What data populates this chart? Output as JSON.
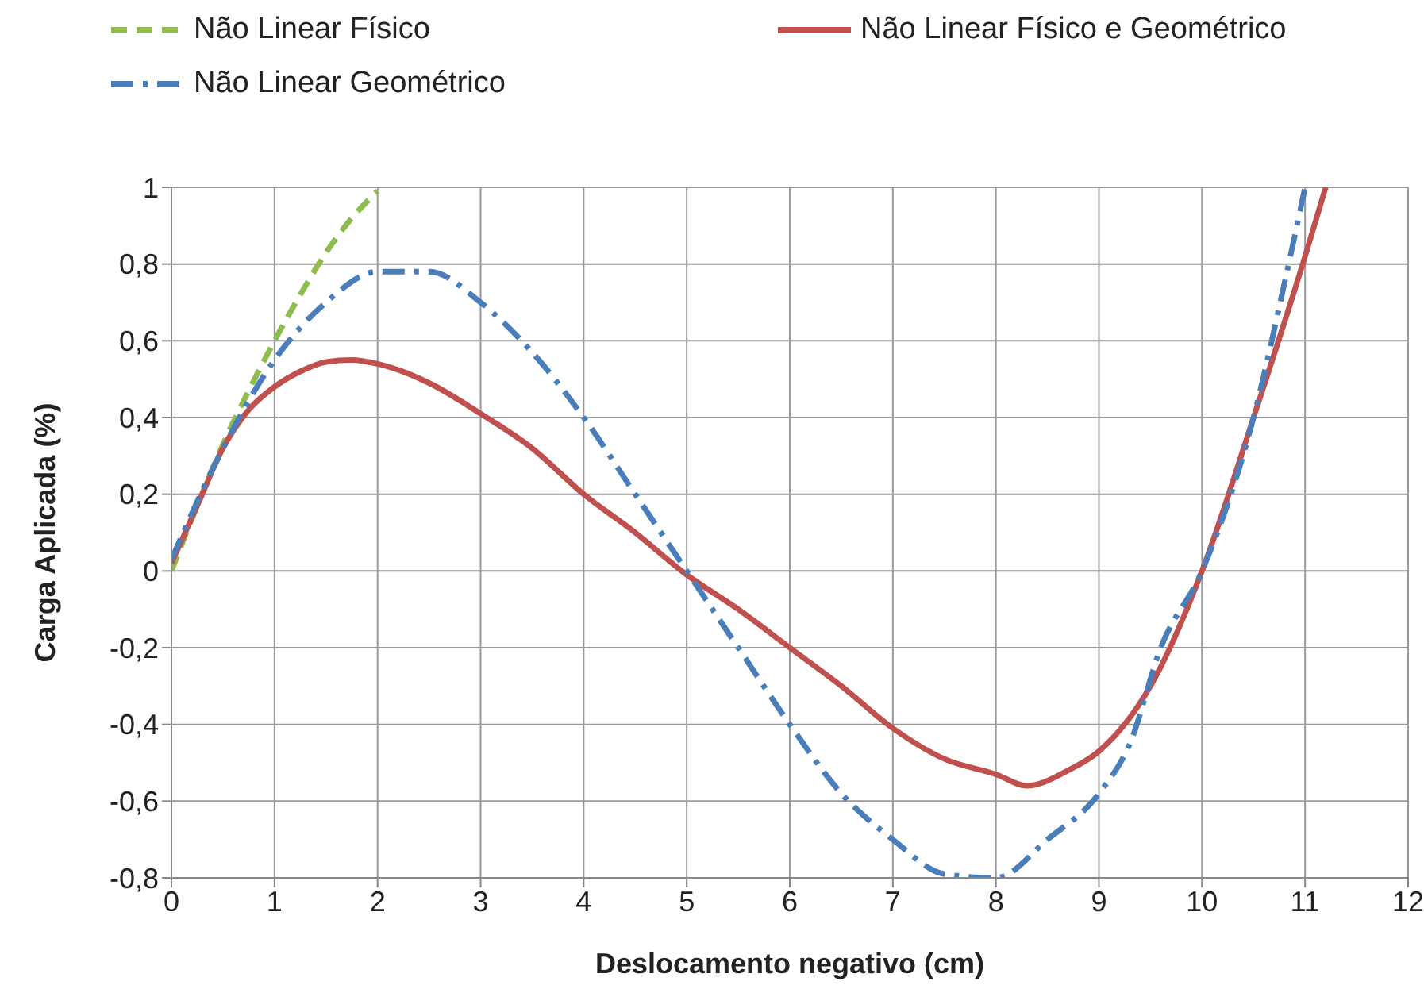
{
  "chart_data": {
    "type": "line",
    "xlabel": "Deslocamento negativo (cm)",
    "ylabel": "Carga Aplicada (%)",
    "xlim": [
      0,
      12
    ],
    "xticks": [
      0,
      1,
      2,
      3,
      4,
      5,
      6,
      7,
      8,
      9,
      10,
      11,
      12
    ],
    "ylim": [
      -0.8,
      1
    ],
    "yticks": [
      {
        "value": -0.8,
        "label": "-0,8"
      },
      {
        "value": -0.6,
        "label": "-0,6"
      },
      {
        "value": -0.4,
        "label": "-0,4"
      },
      {
        "value": -0.2,
        "label": "-0,2"
      },
      0,
      {
        "value": 0.2,
        "label": "0,2"
      },
      {
        "value": 0.4,
        "label": "0,4"
      },
      {
        "value": 0.6,
        "label": "0,6"
      },
      {
        "value": 0.8,
        "label": "0,8"
      },
      1
    ],
    "grid": true,
    "legend": "top",
    "marker": "none",
    "series": [
      {
        "name": "Não Linear Físico",
        "color": "#8fbc4f",
        "line_style": "dashed",
        "x": [
          0,
          0.25,
          0.5,
          0.75,
          1,
          1.25,
          1.5,
          1.75,
          2
        ],
        "values": [
          0,
          0.17,
          0.33,
          0.47,
          0.6,
          0.72,
          0.83,
          0.92,
          0.99
        ]
      },
      {
        "name": "Não Linear Físico e Geométrico",
        "color": "#c0504d",
        "line_style": "solid",
        "x": [
          0,
          0.25,
          0.5,
          0.75,
          1,
          1.25,
          1.5,
          1.75,
          2,
          2.5,
          3,
          3.5,
          4,
          4.5,
          5,
          5.5,
          6,
          6.5,
          7,
          7.5,
          8,
          8.3,
          8.7,
          9,
          9.5,
          10,
          10.5,
          11,
          11.2
        ],
        "values": [
          0.02,
          0.17,
          0.32,
          0.42,
          0.48,
          0.52,
          0.545,
          0.55,
          0.54,
          0.49,
          0.41,
          0.32,
          0.2,
          0.1,
          -0.01,
          -0.1,
          -0.2,
          -0.3,
          -0.41,
          -0.49,
          -0.53,
          -0.56,
          -0.52,
          -0.47,
          -0.3,
          0,
          0.4,
          0.82,
          1
        ]
      },
      {
        "name": "Não Linear Geométrico",
        "color": "#4a7ebb",
        "line_style": "dashdot",
        "x": [
          0,
          0.5,
          1,
          1.5,
          2,
          2.5,
          3,
          3.5,
          4,
          4.5,
          5,
          5.5,
          6,
          6.5,
          7,
          7.5,
          8,
          8.5,
          9,
          9.3,
          9.6,
          10,
          10.5,
          10.8,
          11
        ],
        "values": [
          0.03,
          0.32,
          0.55,
          0.7,
          0.78,
          0.78,
          0.7,
          0.57,
          0.4,
          0.2,
          0,
          -0.2,
          -0.4,
          -0.58,
          -0.7,
          -0.79,
          -0.8,
          -0.7,
          -0.58,
          -0.45,
          -0.2,
          0,
          0.4,
          0.75,
          1
        ]
      }
    ]
  }
}
